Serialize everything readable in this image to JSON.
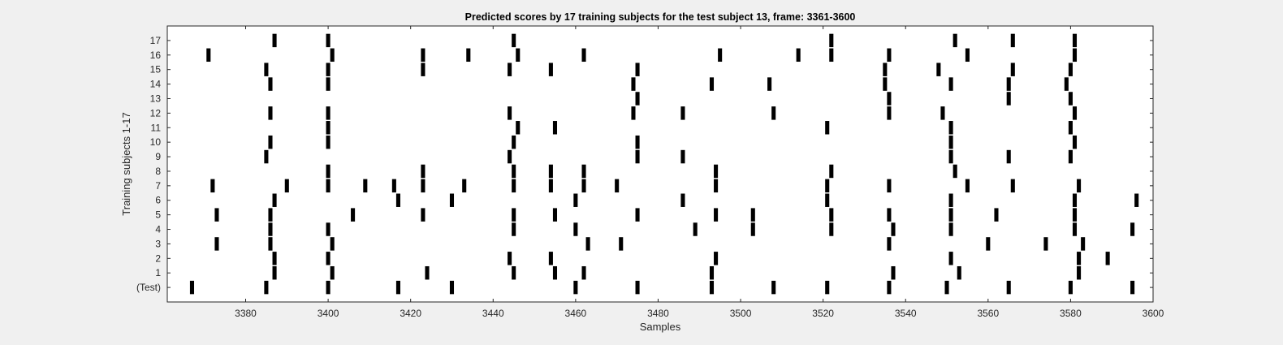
{
  "chart_data": {
    "type": "raster",
    "title": "Predicted scores by 17 training subjects for the test subject 13, frame: 3361-3600",
    "xlabel": "Samples",
    "ylabel": "Training subjects 1-17",
    "xlim": [
      3361,
      3600
    ],
    "x_ticks": [
      3380,
      3400,
      3420,
      3440,
      3460,
      3480,
      3500,
      3520,
      3540,
      3560,
      3580,
      3600
    ],
    "rows": [
      "(Test)",
      "1",
      "2",
      "3",
      "4",
      "5",
      "6",
      "7",
      "8",
      "9",
      "10",
      "11",
      "12",
      "13",
      "14",
      "15",
      "16",
      "17"
    ],
    "events": [
      {
        "row": "(Test)",
        "x": [
          3367,
          3385,
          3400,
          3417,
          3430,
          3460,
          3475,
          3493,
          3508,
          3521,
          3536,
          3550,
          3565,
          3580,
          3595
        ]
      },
      {
        "row": "1",
        "x": [
          3387,
          3401,
          3424,
          3445,
          3455,
          3462,
          3493,
          3537,
          3553,
          3582
        ]
      },
      {
        "row": "2",
        "x": [
          3387,
          3400,
          3444,
          3454,
          3494,
          3551,
          3582,
          3589
        ]
      },
      {
        "row": "3",
        "x": [
          3373,
          3386,
          3401,
          3463,
          3471,
          3536,
          3560,
          3574,
          3583
        ]
      },
      {
        "row": "4",
        "x": [
          3386,
          3400,
          3445,
          3460,
          3489,
          3503,
          3522,
          3537,
          3551,
          3581,
          3595
        ]
      },
      {
        "row": "5",
        "x": [
          3373,
          3386,
          3406,
          3423,
          3445,
          3455,
          3475,
          3494,
          3503,
          3522,
          3536,
          3551,
          3562,
          3581
        ]
      },
      {
        "row": "6",
        "x": [
          3387,
          3417,
          3430,
          3460,
          3486,
          3521,
          3551,
          3581,
          3596
        ]
      },
      {
        "row": "7",
        "x": [
          3372,
          3390,
          3400,
          3409,
          3416,
          3423,
          3433,
          3445,
          3454,
          3462,
          3470,
          3494,
          3521,
          3536,
          3555,
          3566,
          3582
        ]
      },
      {
        "row": "8",
        "x": [
          3400,
          3423,
          3445,
          3454,
          3462,
          3494,
          3522,
          3552
        ]
      },
      {
        "row": "9",
        "x": [
          3385,
          3444,
          3475,
          3486,
          3551,
          3565,
          3580
        ]
      },
      {
        "row": "10",
        "x": [
          3386,
          3400,
          3445,
          3475,
          3551,
          3581
        ]
      },
      {
        "row": "11",
        "x": [
          3400,
          3446,
          3455,
          3521,
          3551,
          3580
        ]
      },
      {
        "row": "12",
        "x": [
          3386,
          3400,
          3444,
          3474,
          3486,
          3508,
          3536,
          3549,
          3581
        ]
      },
      {
        "row": "13",
        "x": [
          3475,
          3536,
          3565,
          3580
        ]
      },
      {
        "row": "14",
        "x": [
          3386,
          3400,
          3474,
          3493,
          3507,
          3535,
          3551,
          3565,
          3579
        ]
      },
      {
        "row": "15",
        "x": [
          3385,
          3400,
          3423,
          3444,
          3454,
          3475,
          3535,
          3548,
          3566,
          3580
        ]
      },
      {
        "row": "16",
        "x": [
          3371,
          3401,
          3423,
          3434,
          3446,
          3462,
          3495,
          3514,
          3522,
          3536,
          3555,
          3581
        ]
      },
      {
        "row": "17",
        "x": [
          3387,
          3400,
          3445,
          3522,
          3552,
          3566,
          3581
        ]
      }
    ]
  }
}
